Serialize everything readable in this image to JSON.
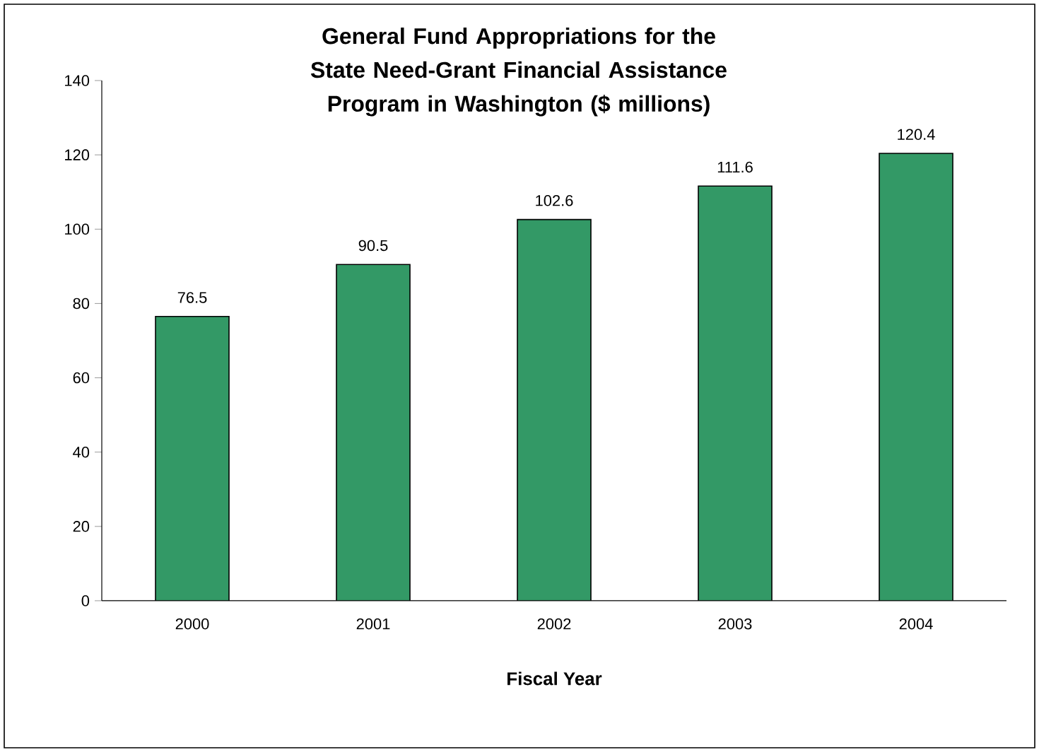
{
  "chart_data": {
    "type": "bar",
    "title": "General Fund Appropriations for the State Need-Grant Financial Assistance Program in Washington ($ millions)",
    "xlabel": "Fiscal Year",
    "categories": [
      "2000",
      "2001",
      "2002",
      "2003",
      "2004"
    ],
    "values": [
      76.5,
      90.5,
      102.6,
      111.6,
      120.4
    ],
    "color": "#339966",
    "ylim": [
      0,
      140
    ],
    "yticks": [
      0,
      20,
      40,
      60,
      80,
      100,
      120,
      140
    ],
    "data_labels": true,
    "grid": false
  }
}
